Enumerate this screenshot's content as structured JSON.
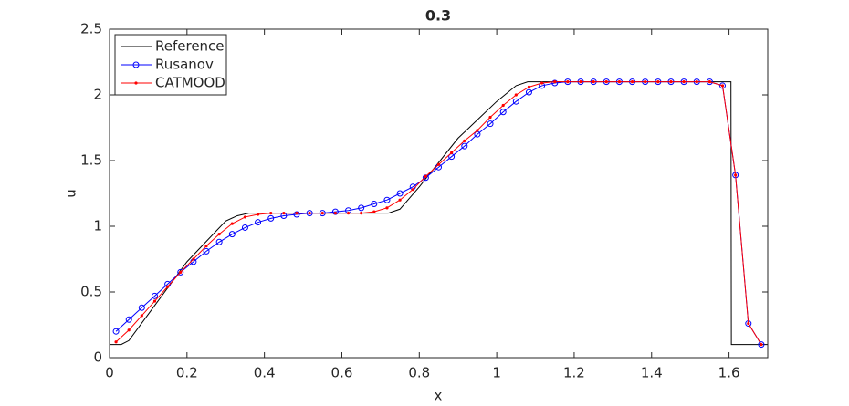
{
  "chart_data": {
    "type": "line",
    "title": "0.3",
    "x_label": "x",
    "y_label": "u",
    "xlim": [
      0,
      1.7
    ],
    "ylim": [
      0,
      2.5
    ],
    "xticks": [
      0,
      0.2,
      0.4,
      0.6,
      0.8,
      1,
      1.2,
      1.4,
      1.6
    ],
    "yticks": [
      0,
      0.5,
      1,
      1.5,
      2,
      2.5
    ],
    "legend": "top-left",
    "series": [
      {
        "name": "Reference",
        "color": "#000000",
        "marker": "none",
        "x": [
          0,
          0.03,
          0.05,
          0.1,
          0.2,
          0.3,
          0.33,
          0.36,
          0.4,
          0.72,
          0.75,
          0.8,
          0.9,
          1.0,
          1.05,
          1.08,
          1.1,
          1.605,
          1.606,
          1.7
        ],
        "values": [
          0.1,
          0.1,
          0.13,
          0.33,
          0.73,
          1.04,
          1.08,
          1.1,
          1.1,
          1.1,
          1.13,
          1.3,
          1.67,
          1.95,
          2.07,
          2.1,
          2.1,
          2.1,
          0.1,
          0.1
        ]
      },
      {
        "name": "Rusanov",
        "color": "#0000ff",
        "marker": "circle",
        "x": [
          0.0167,
          0.05,
          0.0833,
          0.1167,
          0.15,
          0.1833,
          0.2167,
          0.25,
          0.2833,
          0.3167,
          0.35,
          0.3833,
          0.4167,
          0.45,
          0.4833,
          0.5167,
          0.55,
          0.5833,
          0.6167,
          0.65,
          0.6833,
          0.7167,
          0.75,
          0.7833,
          0.8167,
          0.85,
          0.8833,
          0.9167,
          0.95,
          0.9833,
          1.0167,
          1.05,
          1.0833,
          1.1167,
          1.15,
          1.1833,
          1.2167,
          1.25,
          1.2833,
          1.3167,
          1.35,
          1.3833,
          1.4167,
          1.45,
          1.4833,
          1.5167,
          1.55,
          1.5833,
          1.6167,
          1.65,
          1.6833
        ],
        "values": [
          0.2,
          0.29,
          0.38,
          0.47,
          0.56,
          0.65,
          0.73,
          0.81,
          0.88,
          0.94,
          0.99,
          1.03,
          1.06,
          1.08,
          1.09,
          1.1,
          1.1,
          1.11,
          1.12,
          1.14,
          1.17,
          1.2,
          1.25,
          1.3,
          1.37,
          1.45,
          1.53,
          1.61,
          1.7,
          1.78,
          1.87,
          1.95,
          2.02,
          2.07,
          2.09,
          2.1,
          2.1,
          2.1,
          2.1,
          2.1,
          2.1,
          2.1,
          2.1,
          2.1,
          2.1,
          2.1,
          2.1,
          2.07,
          1.39,
          0.26,
          0.1
        ]
      },
      {
        "name": "CATMOOD",
        "color": "#ff0000",
        "marker": "dot",
        "x": [
          0.0167,
          0.05,
          0.0833,
          0.1167,
          0.15,
          0.1833,
          0.2167,
          0.25,
          0.2833,
          0.3167,
          0.35,
          0.3833,
          0.4167,
          0.45,
          0.4833,
          0.5167,
          0.55,
          0.5833,
          0.6167,
          0.65,
          0.6833,
          0.7167,
          0.75,
          0.7833,
          0.8167,
          0.85,
          0.8833,
          0.9167,
          0.95,
          0.9833,
          1.0167,
          1.05,
          1.0833,
          1.1167,
          1.15,
          1.1833,
          1.2167,
          1.25,
          1.2833,
          1.3167,
          1.35,
          1.3833,
          1.4167,
          1.45,
          1.4833,
          1.5167,
          1.55,
          1.5833,
          1.6167,
          1.65,
          1.6833
        ],
        "values": [
          0.12,
          0.21,
          0.32,
          0.43,
          0.54,
          0.65,
          0.75,
          0.85,
          0.94,
          1.02,
          1.07,
          1.09,
          1.1,
          1.1,
          1.1,
          1.1,
          1.1,
          1.1,
          1.1,
          1.1,
          1.11,
          1.14,
          1.2,
          1.28,
          1.38,
          1.47,
          1.56,
          1.65,
          1.73,
          1.83,
          1.92,
          2.0,
          2.06,
          2.09,
          2.1,
          2.1,
          2.1,
          2.1,
          2.1,
          2.1,
          2.1,
          2.1,
          2.1,
          2.1,
          2.1,
          2.1,
          2.1,
          2.07,
          1.39,
          0.26,
          0.1
        ]
      }
    ]
  }
}
